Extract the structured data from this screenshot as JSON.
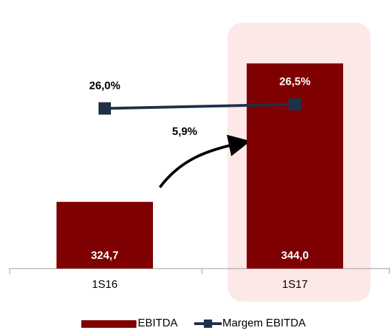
{
  "chart_data": {
    "type": "bar-line",
    "categories": [
      "1S16",
      "1S17"
    ],
    "series": [
      {
        "name": "EBITDA",
        "type": "bar",
        "color": "#7f0000",
        "values": [
          324.7,
          344.0
        ],
        "value_labels": [
          "324,7",
          "344,0"
        ]
      },
      {
        "name": "Margem EBITDA",
        "type": "line",
        "axis": "y2",
        "color": "#1f3049",
        "values": [
          26.0,
          26.5
        ],
        "value_labels": [
          "26,0%",
          "26,5%"
        ]
      }
    ],
    "ylim": [
      315.4,
      349
    ],
    "y2lim": [
      6.6,
      35.8
    ],
    "annotations": [
      {
        "text": "5,9%"
      }
    ],
    "legend": "bottom"
  }
}
